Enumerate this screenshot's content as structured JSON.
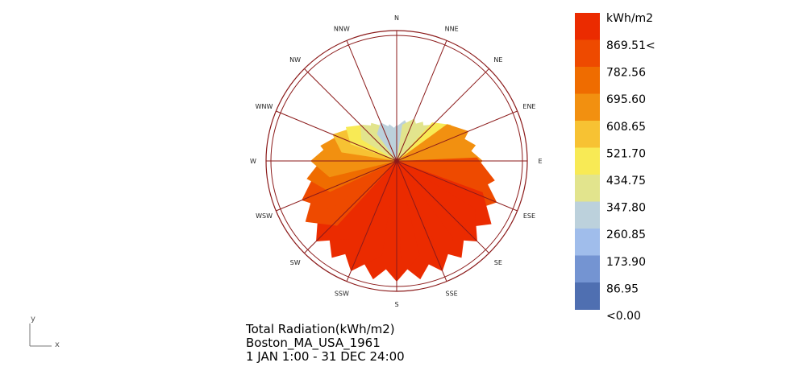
{
  "chart_data": {
    "type": "radial-bar",
    "title": "Total Radiation(kWh/m2)",
    "location": "Boston_MA_USA_1961",
    "period": "1 JAN 1:00 - 31 DEC 24:00",
    "directions": [
      "N",
      "NNE",
      "NE",
      "ENE",
      "E",
      "ESE",
      "SE",
      "SSE",
      "S",
      "SSW",
      "SW",
      "WSW",
      "W",
      "WNW",
      "NW",
      "NNW"
    ],
    "petal_angles_deg": [
      0,
      11.25,
      22.5,
      33.75,
      45,
      56.25,
      67.5,
      78.75,
      90,
      101.25,
      112.5,
      123.75,
      135,
      146.25,
      157.5,
      168.75,
      180,
      191.25,
      202.5,
      213.75,
      225,
      236.25,
      247.5,
      258.75,
      270,
      281.25,
      292.5,
      303.75,
      315,
      326.25,
      337.5,
      348.75
    ],
    "values": [
      260,
      300,
      330,
      340,
      370,
      470,
      560,
      580,
      620,
      720,
      780,
      820,
      820,
      840,
      860,
      870,
      870,
      870,
      860,
      840,
      820,
      790,
      740,
      660,
      620,
      560,
      500,
      440,
      370,
      330,
      300,
      270
    ],
    "legend": {
      "unit": "kWh/m2",
      "labels": [
        "869.51<",
        "782.56",
        "695.60",
        "608.65",
        "521.70",
        "434.75",
        "347.80",
        "260.85",
        "173.90",
        "86.95",
        "<0.00"
      ],
      "colors": [
        "#eb2b00",
        "#ee4a00",
        "#ef6c00",
        "#f29010",
        "#f7c233",
        "#f8ea55",
        "#e2e48d",
        "#bcd1dc",
        "#a0bdeb",
        "#7494d2",
        "#4f6fb1"
      ],
      "max": 870
    },
    "axis_letters": {
      "x": "x",
      "y": "y"
    }
  }
}
